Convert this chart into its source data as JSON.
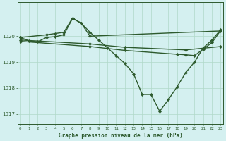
{
  "bg_color": "#d4f0f0",
  "line_color": "#2d5a2d",
  "grid_color": "#b0d8c8",
  "title": "Graphe pression niveau de la mer (hPa)",
  "yticks": [
    1017,
    1018,
    1019,
    1020
  ],
  "ylim": [
    1016.6,
    1021.3
  ],
  "xlim": [
    -0.3,
    23.3
  ],
  "series": [
    {
      "x": [
        0,
        1,
        2,
        3,
        4,
        5,
        6,
        7,
        8,
        9,
        10,
        11,
        12,
        13,
        14,
        15,
        16,
        17,
        18,
        19,
        20,
        21,
        22,
        23
      ],
      "y": [
        1019.95,
        1019.82,
        1019.78,
        1019.95,
        1019.98,
        1020.05,
        1020.68,
        1020.5,
        1020.15,
        1019.85,
        1019.55,
        1019.25,
        1018.95,
        1018.55,
        1017.75,
        1017.75,
        1017.1,
        1017.55,
        1018.05,
        1018.6,
        1019.0,
        1019.55,
        1019.85,
        1020.25
      ]
    },
    {
      "x": [
        0,
        3,
        4,
        5,
        6,
        7,
        8,
        23
      ],
      "y": [
        1019.95,
        1020.05,
        1020.1,
        1020.15,
        1020.7,
        1020.5,
        1020.0,
        1020.2
      ]
    },
    {
      "x": [
        0,
        8,
        12,
        19,
        23
      ],
      "y": [
        1019.85,
        1019.7,
        1019.57,
        1019.47,
        1019.6
      ]
    },
    {
      "x": [
        0,
        8,
        12,
        18,
        19,
        20,
        21,
        22,
        23
      ],
      "y": [
        1019.8,
        1019.6,
        1019.45,
        1019.3,
        1019.28,
        1019.25,
        1019.5,
        1019.75,
        1020.22
      ]
    }
  ]
}
